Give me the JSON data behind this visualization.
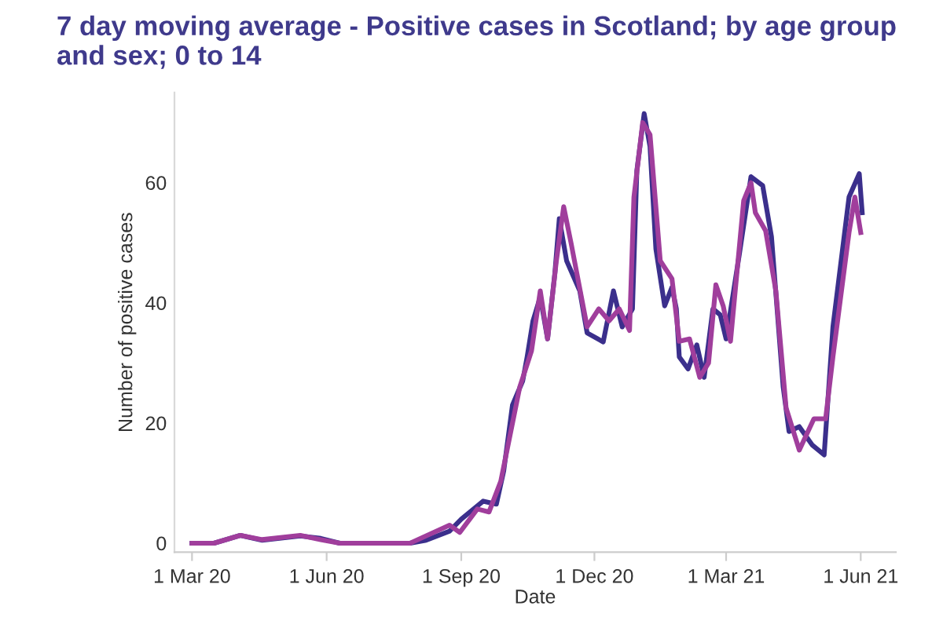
{
  "chart_data": {
    "type": "line",
    "title": "7 day moving average - Positive cases in Scotland; by age group and sex; 0 to 14",
    "xlabel": "Date",
    "ylabel": "Number of positive cases",
    "xlim": [
      "2020-02-18",
      "2021-06-25"
    ],
    "ylim": [
      -1.5,
      75
    ],
    "yticks": [
      0,
      20,
      40,
      60
    ],
    "xticks": [
      {
        "value": "2020-03-01",
        "label": "1 Mar 20"
      },
      {
        "value": "2020-06-01",
        "label": "1 Jun 20"
      },
      {
        "value": "2020-09-01",
        "label": "1 Sep 20"
      },
      {
        "value": "2020-12-01",
        "label": "1 Dec 20"
      },
      {
        "value": "2021-03-01",
        "label": "1 Mar 21"
      },
      {
        "value": "2021-06-01",
        "label": "1 Jun 21"
      }
    ],
    "grid": false,
    "legend": false,
    "marker": "none",
    "line_style": "solid",
    "series": [
      {
        "color": "#3b2f8c",
        "x": [
          "2020-03-01",
          "2020-03-16",
          "2020-04-03",
          "2020-04-18",
          "2020-05-14",
          "2020-05-28",
          "2020-06-10",
          "2020-07-07",
          "2020-07-28",
          "2020-08-08",
          "2020-08-24",
          "2020-09-01",
          "2020-09-16",
          "2020-09-25",
          "2020-09-30",
          "2020-10-06",
          "2020-10-13",
          "2020-10-16",
          "2020-10-20",
          "2020-10-25",
          "2020-10-30",
          "2020-11-04",
          "2020-11-07",
          "2020-11-12",
          "2020-11-21",
          "2020-11-26",
          "2020-12-07",
          "2020-12-14",
          "2020-12-20",
          "2020-12-27",
          "2020-12-30",
          "2021-01-04",
          "2021-01-08",
          "2021-01-12",
          "2021-01-18",
          "2021-01-23",
          "2021-01-26",
          "2021-01-28",
          "2021-02-03",
          "2021-02-09",
          "2021-02-14",
          "2021-02-20",
          "2021-02-25",
          "2021-03-01",
          "2021-03-10",
          "2021-03-18",
          "2021-03-26",
          "2021-04-01",
          "2021-04-09",
          "2021-04-13",
          "2021-04-20",
          "2021-04-29",
          "2021-05-07",
          "2021-05-13",
          "2021-05-24",
          "2021-05-31",
          "2021-06-02"
        ],
        "values": [
          0,
          0,
          1.3,
          0.5,
          1.2,
          0.8,
          0,
          0,
          0,
          0.5,
          2,
          4,
          7,
          6.5,
          12,
          23,
          27,
          31,
          37,
          41,
          34,
          45,
          54,
          47,
          42,
          35,
          33.5,
          42,
          36,
          39,
          62,
          71.5,
          66,
          49,
          39.5,
          42.6,
          39,
          31,
          29,
          33,
          27.6,
          39,
          38,
          34,
          48,
          61,
          59.5,
          51,
          26,
          18.6,
          19.4,
          16.3,
          14.7,
          36,
          57.6,
          61.5,
          55
        ]
      },
      {
        "color": "#a03e9c",
        "x": [
          "2020-03-01",
          "2020-03-16",
          "2020-04-03",
          "2020-04-18",
          "2020-05-14",
          "2020-05-28",
          "2020-06-10",
          "2020-07-07",
          "2020-07-28",
          "2020-08-24",
          "2020-08-31",
          "2020-09-12",
          "2020-09-20",
          "2020-09-28",
          "2020-10-11",
          "2020-10-19",
          "2020-10-25",
          "2020-10-30",
          "2020-11-05",
          "2020-11-10",
          "2020-11-15",
          "2020-11-26",
          "2020-12-04",
          "2020-12-11",
          "2020-12-18",
          "2020-12-25",
          "2020-12-28",
          "2021-01-03",
          "2021-01-08",
          "2021-01-15",
          "2021-01-23",
          "2021-01-28",
          "2021-02-04",
          "2021-02-11",
          "2021-02-17",
          "2021-02-22",
          "2021-02-27",
          "2021-03-04",
          "2021-03-13",
          "2021-03-18",
          "2021-03-21",
          "2021-03-28",
          "2021-04-04",
          "2021-04-11",
          "2021-04-20",
          "2021-04-30",
          "2021-05-08",
          "2021-05-13",
          "2021-05-24",
          "2021-05-28",
          "2021-06-01"
        ],
        "values": [
          0,
          0,
          1.3,
          0.6,
          1.3,
          0.6,
          0,
          0,
          0,
          3,
          1.8,
          5.7,
          5.2,
          10.3,
          26,
          32,
          42,
          34,
          47,
          56,
          50,
          36,
          39,
          37,
          39,
          35.4,
          57.6,
          70,
          68,
          47,
          44,
          33.6,
          34,
          27.6,
          30,
          43,
          39.5,
          33.6,
          57,
          60,
          55,
          52,
          42,
          22.5,
          15.5,
          20.7,
          20.7,
          31,
          51.7,
          57.6,
          51.7
        ]
      }
    ]
  }
}
